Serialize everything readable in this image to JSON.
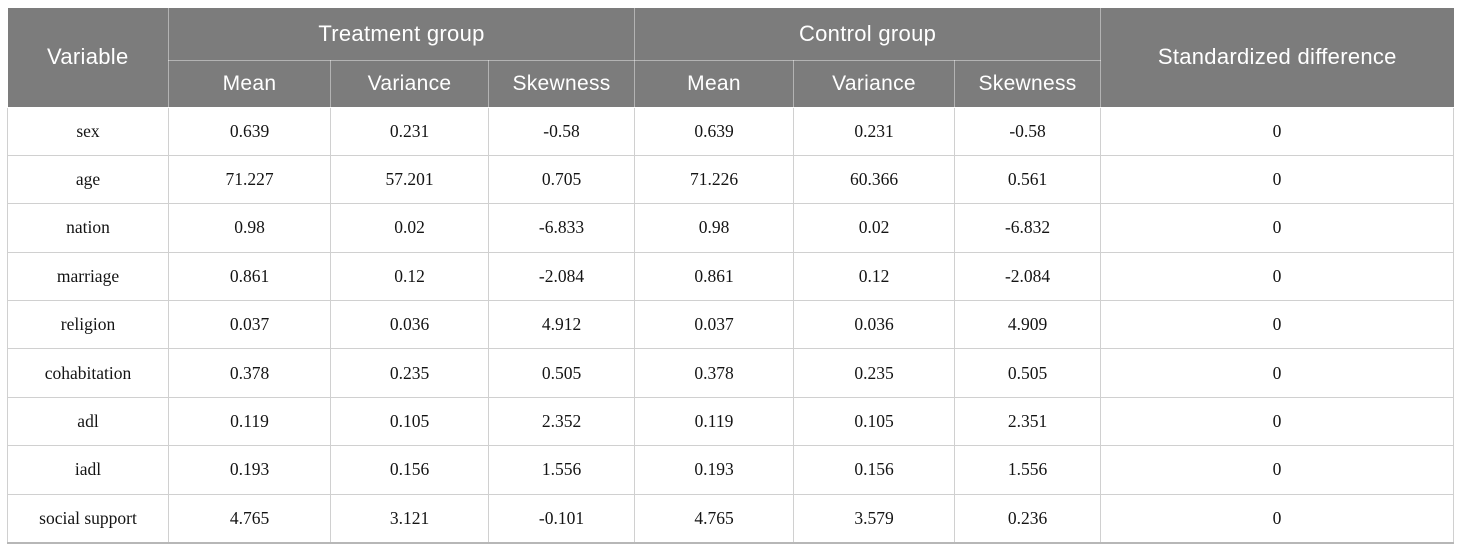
{
  "table": {
    "header": {
      "variable": "Variable",
      "treatment_group": "Treatment group",
      "control_group": "Control group",
      "standardized_difference": "Standardized difference",
      "subcolumns": [
        "Mean",
        "Variance",
        "Skewness"
      ]
    },
    "rows": [
      {
        "variable": "sex",
        "treatment": {
          "mean": "0.639",
          "variance": "0.231",
          "skewness": "-0.58"
        },
        "control": {
          "mean": "0.639",
          "variance": "0.231",
          "skewness": "-0.58"
        },
        "standardized_difference": "0"
      },
      {
        "variable": "age",
        "treatment": {
          "mean": "71.227",
          "variance": "57.201",
          "skewness": "0.705"
        },
        "control": {
          "mean": "71.226",
          "variance": "60.366",
          "skewness": "0.561"
        },
        "standardized_difference": "0"
      },
      {
        "variable": "nation",
        "treatment": {
          "mean": "0.98",
          "variance": "0.02",
          "skewness": "-6.833"
        },
        "control": {
          "mean": "0.98",
          "variance": "0.02",
          "skewness": "-6.832"
        },
        "standardized_difference": "0"
      },
      {
        "variable": "marriage",
        "treatment": {
          "mean": "0.861",
          "variance": "0.12",
          "skewness": "-2.084"
        },
        "control": {
          "mean": "0.861",
          "variance": "0.12",
          "skewness": "-2.084"
        },
        "standardized_difference": "0"
      },
      {
        "variable": "religion",
        "treatment": {
          "mean": "0.037",
          "variance": "0.036",
          "skewness": "4.912"
        },
        "control": {
          "mean": "0.037",
          "variance": "0.036",
          "skewness": "4.909"
        },
        "standardized_difference": "0"
      },
      {
        "variable": "cohabitation",
        "treatment": {
          "mean": "0.378",
          "variance": "0.235",
          "skewness": "0.505"
        },
        "control": {
          "mean": "0.378",
          "variance": "0.235",
          "skewness": "0.505"
        },
        "standardized_difference": "0"
      },
      {
        "variable": "adl",
        "treatment": {
          "mean": "0.119",
          "variance": "0.105",
          "skewness": "2.352"
        },
        "control": {
          "mean": "0.119",
          "variance": "0.105",
          "skewness": "2.351"
        },
        "standardized_difference": "0"
      },
      {
        "variable": "iadl",
        "treatment": {
          "mean": "0.193",
          "variance": "0.156",
          "skewness": "1.556"
        },
        "control": {
          "mean": "0.193",
          "variance": "0.156",
          "skewness": "1.556"
        },
        "standardized_difference": "0"
      },
      {
        "variable": "social support",
        "treatment": {
          "mean": "4.765",
          "variance": "3.121",
          "skewness": "-0.101"
        },
        "control": {
          "mean": "4.765",
          "variance": "3.579",
          "skewness": "0.236"
        },
        "standardized_difference": "0"
      }
    ],
    "colors": {
      "header_background": "#7c7c7c",
      "header_text": "#ffffff",
      "body_border": "#d0d0d0",
      "bottom_border": "#b7b7b7"
    }
  }
}
